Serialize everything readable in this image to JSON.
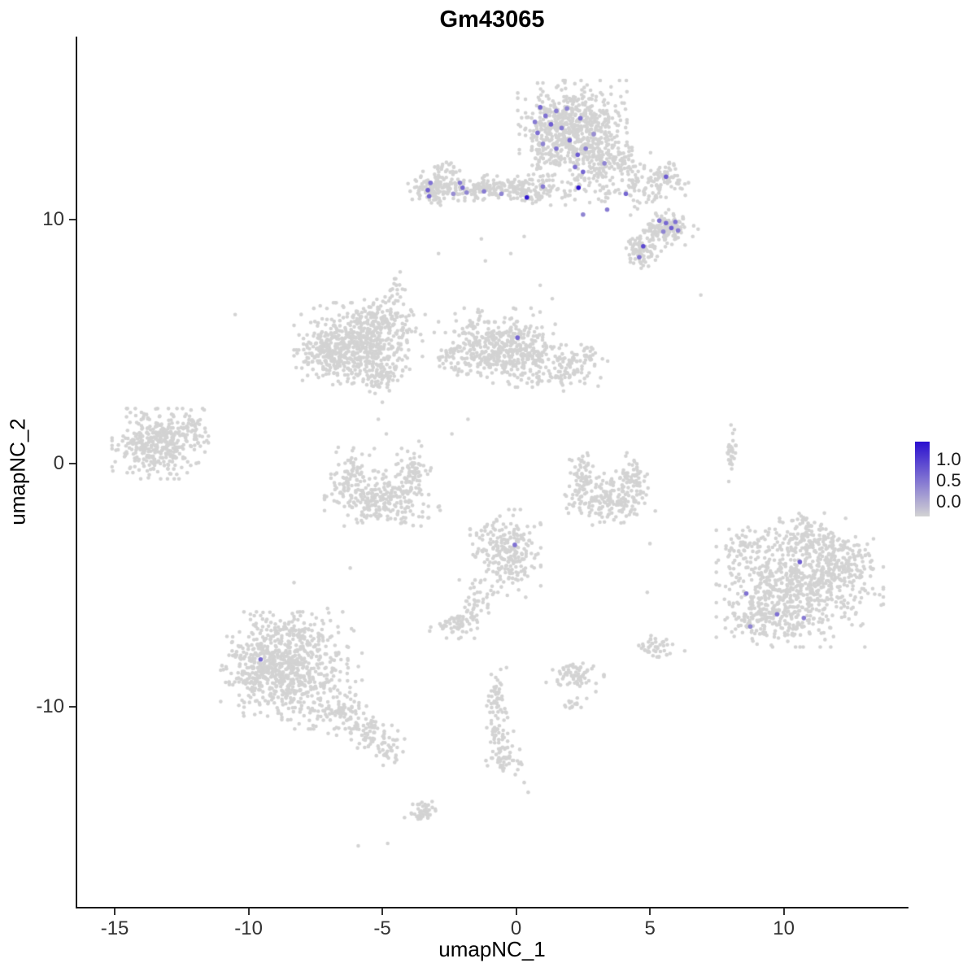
{
  "title": "Gm43065",
  "axes": {
    "xlabel": "umapNC_1",
    "ylabel": "umapNC_2",
    "x_ticks": [
      -15,
      -10,
      -5,
      0,
      5,
      10
    ],
    "y_ticks": [
      10,
      0,
      -10
    ],
    "x_range": [
      -16.4,
      14.6
    ],
    "y_range": [
      -18.2,
      17.5
    ]
  },
  "legend": {
    "labels": [
      "1.0",
      "0.5",
      "0.0"
    ],
    "values": [
      1.0,
      0.5,
      0.0
    ]
  },
  "chart_data": {
    "type": "scatter",
    "title": "Gm43065",
    "xlabel": "umapNC_1",
    "ylabel": "umapNC_2",
    "xlim": [
      -16.4,
      14.6
    ],
    "ylim": [
      -18.2,
      17.5
    ],
    "grid": false,
    "legend_position": "right",
    "colors": {
      "low": "#d3d3d3",
      "high": "#2a0fd0"
    },
    "point_radius_px": 2.3,
    "_format": "background_clusters: [center_x, center_y, sd_x, sd_y, n_points]; background_singletons: [x, y]; expressing_cells: [x, y, expression_value 0..1]",
    "background_clusters": [
      [
        2.1,
        13.9,
        0.85,
        0.75,
        560
      ],
      [
        2.9,
        12.7,
        0.55,
        0.45,
        110
      ],
      [
        1.2,
        12.8,
        0.45,
        0.4,
        70
      ],
      [
        3.9,
        12.3,
        0.5,
        0.5,
        60
      ],
      [
        3.1,
        11.5,
        0.6,
        0.4,
        50
      ],
      [
        4.5,
        11.2,
        0.45,
        0.45,
        50
      ],
      [
        -1.4,
        11.3,
        1.1,
        0.22,
        190
      ],
      [
        -3.1,
        11.25,
        0.35,
        0.3,
        110
      ],
      [
        -2.6,
        12.0,
        0.25,
        0.2,
        25
      ],
      [
        0.3,
        11.15,
        0.5,
        0.28,
        60
      ],
      [
        1.6,
        11.3,
        0.5,
        0.35,
        45
      ],
      [
        5.6,
        9.6,
        0.45,
        0.3,
        140
      ],
      [
        4.7,
        8.7,
        0.3,
        0.3,
        85
      ],
      [
        5.6,
        11.7,
        0.35,
        0.3,
        70
      ],
      [
        -5.9,
        4.9,
        1.0,
        0.7,
        480
      ],
      [
        -6.9,
        4.5,
        0.55,
        0.55,
        140
      ],
      [
        -5.1,
        5.9,
        0.5,
        0.4,
        90
      ],
      [
        -4.5,
        6.9,
        0.2,
        0.45,
        25
      ],
      [
        -0.7,
        4.8,
        0.9,
        0.65,
        360
      ],
      [
        0.5,
        4.2,
        0.5,
        0.45,
        100
      ],
      [
        2.1,
        4.0,
        0.55,
        0.5,
        110
      ],
      [
        -2.1,
        4.4,
        0.4,
        0.4,
        60
      ],
      [
        -5.15,
        3.5,
        0.38,
        0.3,
        70
      ],
      [
        -13.3,
        0.8,
        0.75,
        0.6,
        380
      ],
      [
        -12.2,
        1.6,
        0.3,
        0.25,
        35
      ],
      [
        -5.0,
        -1.5,
        0.9,
        0.5,
        240
      ],
      [
        -6.2,
        -0.4,
        0.3,
        0.5,
        70
      ],
      [
        -3.9,
        -0.3,
        0.3,
        0.5,
        70
      ],
      [
        3.4,
        -1.5,
        0.75,
        0.45,
        190
      ],
      [
        2.5,
        -0.4,
        0.25,
        0.45,
        50
      ],
      [
        4.3,
        -0.5,
        0.25,
        0.45,
        50
      ],
      [
        8.05,
        0.45,
        0.1,
        0.5,
        28
      ],
      [
        10.6,
        -4.9,
        1.3,
        1.1,
        700
      ],
      [
        9.2,
        -6.3,
        0.6,
        0.5,
        130
      ],
      [
        12.3,
        -4.2,
        0.5,
        0.6,
        110
      ],
      [
        10.9,
        -3.0,
        0.6,
        0.4,
        90
      ],
      [
        8.6,
        -3.4,
        0.4,
        0.4,
        40
      ],
      [
        -0.4,
        -3.7,
        0.55,
        0.75,
        240
      ],
      [
        -1.6,
        -5.7,
        0.3,
        0.45,
        40
      ],
      [
        -2.3,
        -6.6,
        0.4,
        0.25,
        55
      ],
      [
        -8.4,
        -8.5,
        1.1,
        1.0,
        600
      ],
      [
        -9.5,
        -8.3,
        0.6,
        0.6,
        160
      ],
      [
        -6.6,
        -10.2,
        0.5,
        0.4,
        80
      ],
      [
        -5.5,
        -11.1,
        0.4,
        0.35,
        60
      ],
      [
        -4.8,
        -11.7,
        0.3,
        0.3,
        35
      ],
      [
        -8.2,
        -6.8,
        0.7,
        0.35,
        70
      ],
      [
        -0.75,
        -9.6,
        0.18,
        0.55,
        45
      ],
      [
        -0.6,
        -11.2,
        0.22,
        0.6,
        45
      ],
      [
        -0.35,
        -12.2,
        0.3,
        0.25,
        35
      ],
      [
        2.2,
        -8.7,
        0.45,
        0.28,
        70
      ],
      [
        2.3,
        -9.9,
        0.2,
        0.15,
        15
      ],
      [
        5.15,
        -7.6,
        0.3,
        0.22,
        40
      ],
      [
        -3.5,
        -14.3,
        0.28,
        0.22,
        45
      ]
    ],
    "background_singletons": [
      [
        -10.5,
        6.1
      ],
      [
        0.9,
        7.3
      ],
      [
        1.35,
        6.75
      ],
      [
        6.9,
        6.9
      ],
      [
        -0.2,
        8.6
      ],
      [
        0.3,
        9.3
      ],
      [
        -2.9,
        8.6
      ],
      [
        -1.3,
        9.2
      ],
      [
        -1.15,
        8.3
      ],
      [
        5.6,
        10.9
      ],
      [
        5.7,
        10.4
      ],
      [
        6.6,
        9.3
      ],
      [
        6.8,
        9.6
      ],
      [
        -3.4,
        6.1
      ],
      [
        -2.9,
        5.8
      ],
      [
        -5.0,
        2.5
      ],
      [
        -5.15,
        1.8
      ],
      [
        -4.85,
        1.2
      ],
      [
        -5.3,
        0.6
      ],
      [
        -1.8,
        1.8
      ],
      [
        -2.4,
        1.2
      ],
      [
        5.0,
        -3.3
      ],
      [
        4.9,
        -5.3
      ],
      [
        -6.2,
        -4.3
      ],
      [
        -8.3,
        -4.9
      ],
      [
        -5.9,
        -15.7
      ],
      [
        -4.8,
        -15.6
      ],
      [
        0.3,
        -13.1
      ],
      [
        0.45,
        -13.5
      ],
      [
        6.3,
        -7.7
      ]
    ],
    "expressing_cells": [
      [
        0.7,
        14.0,
        0.45
      ],
      [
        0.9,
        14.6,
        0.55
      ],
      [
        1.1,
        14.25,
        0.5
      ],
      [
        1.5,
        14.45,
        0.45
      ],
      [
        1.9,
        14.55,
        0.4
      ],
      [
        2.4,
        14.15,
        0.5
      ],
      [
        1.3,
        13.9,
        0.6
      ],
      [
        0.8,
        13.55,
        0.5
      ],
      [
        1.7,
        13.75,
        0.45
      ],
      [
        2.0,
        13.25,
        0.55
      ],
      [
        2.9,
        13.5,
        0.35
      ],
      [
        1.0,
        13.1,
        0.4
      ],
      [
        1.5,
        12.9,
        0.5
      ],
      [
        2.3,
        12.65,
        0.6
      ],
      [
        2.6,
        12.9,
        0.45
      ],
      [
        2.2,
        12.15,
        0.5
      ],
      [
        2.5,
        11.95,
        0.55
      ],
      [
        3.3,
        12.3,
        0.4
      ],
      [
        2.33,
        11.3,
        1.0
      ],
      [
        0.4,
        10.9,
        0.95
      ],
      [
        1.0,
        11.35,
        0.45
      ],
      [
        2.5,
        10.2,
        0.4
      ],
      [
        3.4,
        10.4,
        0.45
      ],
      [
        -3.2,
        11.5,
        0.5
      ],
      [
        -3.3,
        11.2,
        0.6
      ],
      [
        -3.25,
        10.95,
        0.55
      ],
      [
        -2.1,
        11.5,
        0.45
      ],
      [
        -2.0,
        11.3,
        0.55
      ],
      [
        -1.85,
        11.1,
        0.4
      ],
      [
        -2.35,
        11.05,
        0.35
      ],
      [
        -1.2,
        11.15,
        0.45
      ],
      [
        -0.55,
        11.05,
        0.4
      ],
      [
        4.1,
        11.05,
        0.55
      ],
      [
        5.6,
        11.75,
        0.6
      ],
      [
        5.35,
        9.95,
        0.5
      ],
      [
        5.6,
        9.85,
        0.55
      ],
      [
        5.8,
        9.65,
        0.6
      ],
      [
        5.95,
        9.9,
        0.5
      ],
      [
        6.05,
        9.55,
        0.45
      ],
      [
        5.5,
        9.5,
        0.4
      ],
      [
        4.75,
        8.9,
        0.7
      ],
      [
        4.6,
        8.45,
        0.5
      ],
      [
        0.05,
        5.15,
        0.55
      ],
      [
        -0.05,
        -3.35,
        0.5
      ],
      [
        10.6,
        -4.05,
        0.6
      ],
      [
        8.6,
        -5.35,
        0.5
      ],
      [
        9.75,
        -6.2,
        0.5
      ],
      [
        10.75,
        -6.35,
        0.45
      ],
      [
        8.75,
        -6.7,
        0.4
      ],
      [
        -9.55,
        -8.05,
        0.55
      ]
    ]
  }
}
